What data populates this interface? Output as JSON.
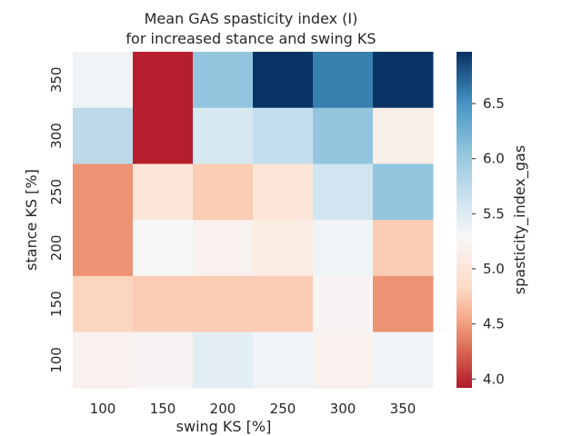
{
  "chart_data": {
    "type": "heatmap",
    "title": "Mean GAS spasticity index (I)",
    "subtitle": "for increased stance and swing KS",
    "xlabel": "swing KS [%]",
    "ylabel": "stance KS [%]",
    "x_categories": [
      "100",
      "150",
      "200",
      "250",
      "300",
      "350"
    ],
    "y_categories": [
      "350",
      "300",
      "250",
      "200",
      "150",
      "100"
    ],
    "values": [
      [
        5.35,
        3.95,
        6.05,
        6.95,
        6.6,
        6.95
      ],
      [
        5.75,
        3.95,
        5.55,
        5.7,
        6.05,
        5.15
      ],
      [
        4.45,
        5.0,
        4.75,
        5.0,
        5.6,
        6.05
      ],
      [
        4.45,
        5.3,
        5.2,
        5.1,
        5.35,
        4.75
      ],
      [
        4.8,
        4.75,
        4.75,
        4.75,
        5.25,
        4.45
      ],
      [
        5.2,
        5.25,
        5.45,
        5.35,
        5.2,
        5.35
      ]
    ],
    "colorbar": {
      "label": "spasticity_index_gas",
      "vmin": 3.92,
      "vmax": 6.97,
      "ticks": [
        "4.0",
        "4.5",
        "5.0",
        "5.5",
        "6.0",
        "6.5"
      ],
      "colormap": "RdBu"
    },
    "grid": false
  }
}
